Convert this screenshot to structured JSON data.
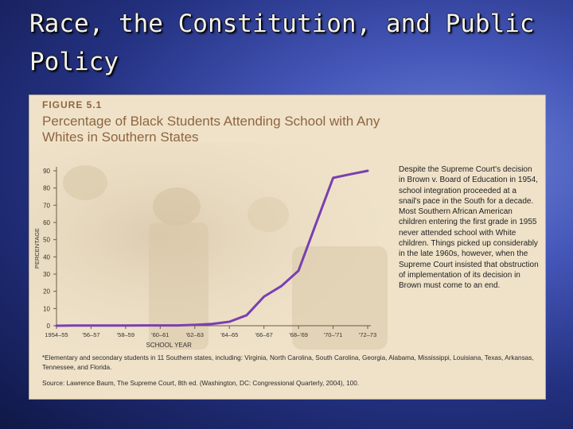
{
  "slide": {
    "title": "Race, the Constitution, and Public Policy"
  },
  "figure": {
    "label": "FIGURE 5.1",
    "title": "Percentage of Black Students Attending School with Any Whites in Southern States",
    "side_note": "Despite the Supreme Court's decision in Brown v. Board of Education in 1954, school integration proceeded at a snail's pace in the South for a decade. Most Southern African American children entering the first grade in 1955 never attended school with White children. Things picked up considerably in the late 1960s, however, when the Supreme Court insisted that obstruction of implementation of its decision in Brown must come to an end.",
    "footnote": "*Elementary and secondary students in 11 Southern states, including: Virginia, North Carolina, South Carolina, Georgia, Alabama, Mississippi, Louisiana, Texas, Arkansas, Tennessee, and Florida.",
    "source": "Source: Lawrence Baum, The Supreme Court, 8th ed. (Washington, DC: Congressional Quarterly, 2004), 100."
  },
  "colors": {
    "line": "#7a3fb0",
    "panel": "#efe2c9",
    "accent_text": "#8f6540"
  },
  "chart_data": {
    "type": "line",
    "title": "Percentage of Black Students Attending School with Any Whites in Southern States",
    "xlabel": "SCHOOL YEAR",
    "ylabel": "PERCENTAGE",
    "categories": [
      "1954–55",
      "'56–57",
      "'58–59",
      "'60–61",
      "'62–63",
      "'64–65",
      "'66–67",
      "'68–'69",
      "'70–'71",
      "'72–73"
    ],
    "x_tick_labels": [
      "1954–55",
      "'56–57",
      "'58–59",
      "'60–61",
      "'62–63",
      "'64–65",
      "'66–67",
      "'68–'69",
      "'70–'71",
      "'72–73"
    ],
    "y_ticks": [
      0,
      10,
      20,
      30,
      40,
      50,
      60,
      70,
      80,
      90
    ],
    "ylim": [
      0,
      90
    ],
    "grid": false,
    "legend": "none",
    "x": [
      1954,
      1955,
      1956,
      1957,
      1958,
      1959,
      1960,
      1961,
      1962,
      1963,
      1964,
      1965,
      1966,
      1967,
      1968,
      1969,
      1970,
      1971,
      1972
    ],
    "values": [
      0.001,
      0.1,
      0.1,
      0.1,
      0.1,
      0.2,
      0.2,
      0.2,
      0.5,
      1.0,
      2.3,
      6.1,
      16.9,
      23.0,
      32.0,
      59.0,
      85.9,
      88.0,
      90.0
    ]
  }
}
